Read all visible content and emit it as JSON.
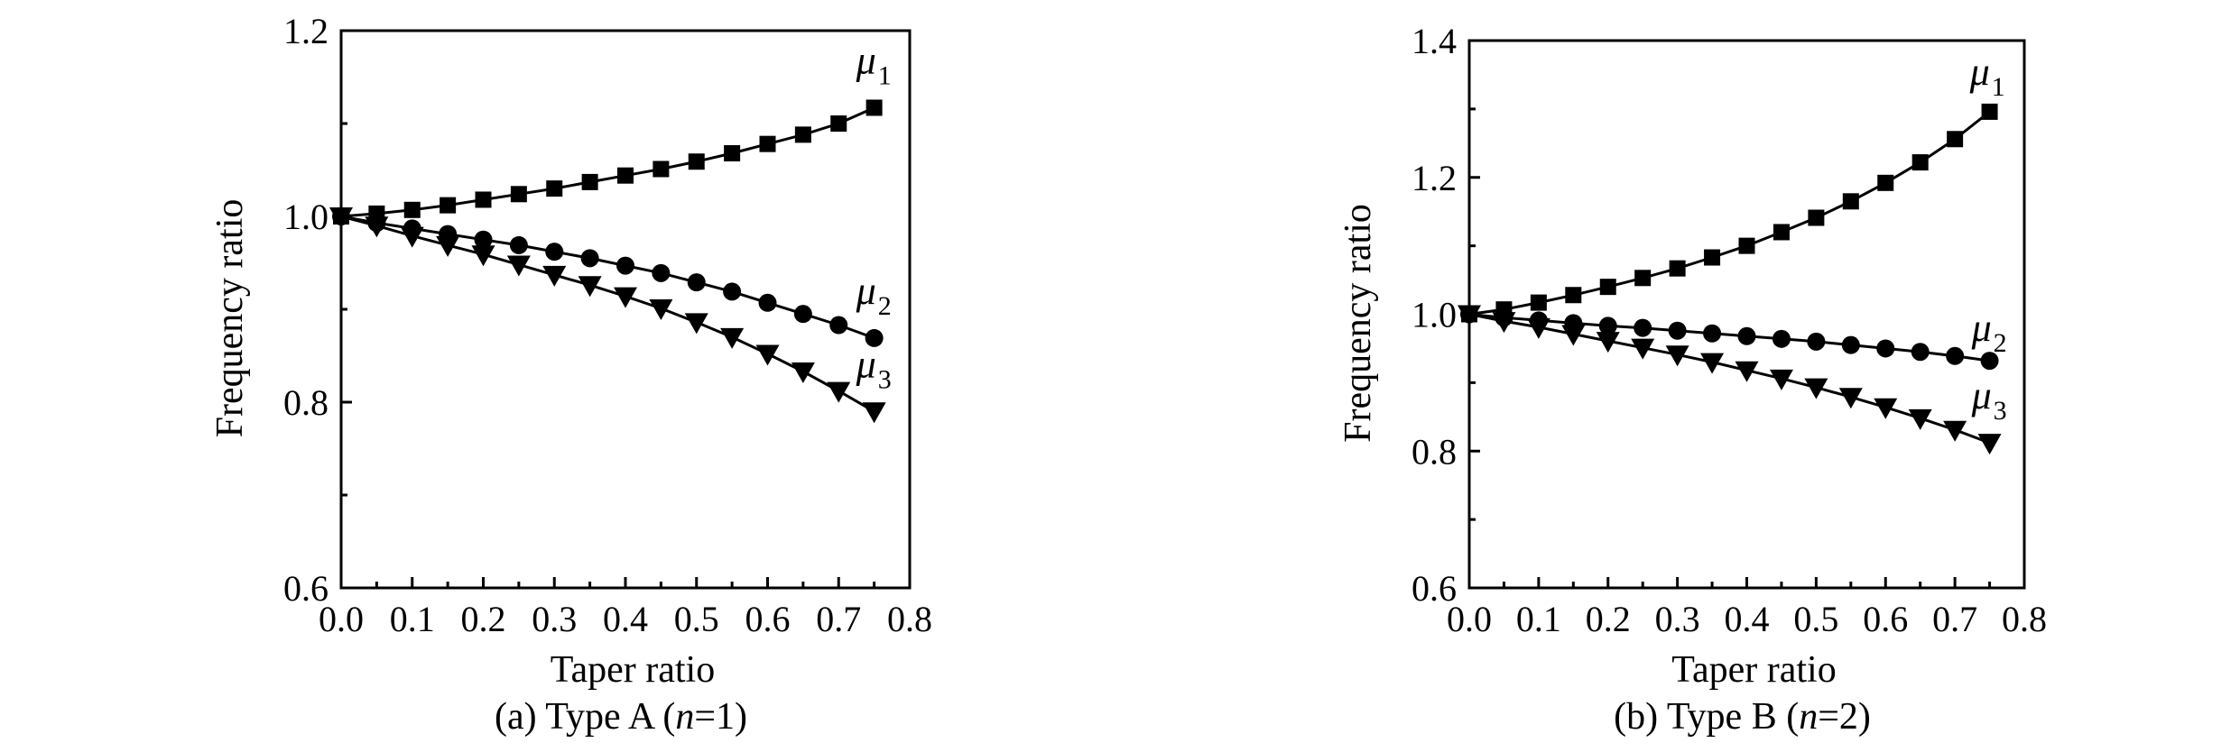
{
  "chart_data": [
    {
      "type": "line",
      "xlabel": "Taper ratio",
      "ylabel": "Frequency ratio",
      "caption_prefix": "(a) Type A (",
      "caption_var": "n",
      "caption_suffix": "=1)",
      "xlim": [
        0.0,
        0.8
      ],
      "ylim": [
        0.6,
        1.2
      ],
      "xticks": [
        "0.0",
        "0.1",
        "0.2",
        "0.3",
        "0.4",
        "0.5",
        "0.6",
        "0.7",
        "0.8"
      ],
      "yticks": [
        "0.6",
        "0.8",
        "1.0",
        "1.2"
      ],
      "grid": false,
      "x": [
        0.0,
        0.05,
        0.1,
        0.15,
        0.2,
        0.25,
        0.3,
        0.35,
        0.4,
        0.45,
        0.5,
        0.55,
        0.6,
        0.65,
        0.7,
        0.75
      ],
      "series": [
        {
          "label_symbol": "μ",
          "label_sub": "1",
          "marker": "square",
          "values": [
            1.0,
            1.003,
            1.007,
            1.012,
            1.018,
            1.024,
            1.03,
            1.037,
            1.044,
            1.051,
            1.059,
            1.068,
            1.078,
            1.088,
            1.1,
            1.117
          ]
        },
        {
          "label_symbol": "μ",
          "label_sub": "2",
          "marker": "circle",
          "values": [
            1.0,
            0.993,
            0.987,
            0.981,
            0.975,
            0.969,
            0.962,
            0.955,
            0.947,
            0.939,
            0.929,
            0.919,
            0.907,
            0.895,
            0.883,
            0.869
          ]
        },
        {
          "label_symbol": "μ",
          "label_sub": "3",
          "marker": "triangle-down",
          "values": [
            1.0,
            0.99,
            0.979,
            0.969,
            0.959,
            0.948,
            0.937,
            0.926,
            0.914,
            0.901,
            0.886,
            0.87,
            0.852,
            0.833,
            0.812,
            0.79
          ]
        }
      ]
    },
    {
      "type": "line",
      "xlabel": "Taper ratio",
      "ylabel": "Frequency ratio",
      "caption_prefix": "(b) Type B (",
      "caption_var": "n",
      "caption_suffix": "=2)",
      "xlim": [
        0.0,
        0.8
      ],
      "ylim": [
        0.6,
        1.4
      ],
      "xticks": [
        "0.0",
        "0.1",
        "0.2",
        "0.3",
        "0.4",
        "0.5",
        "0.6",
        "0.7",
        "0.8"
      ],
      "yticks": [
        "0.6",
        "0.8",
        "1.0",
        "1.2",
        "1.4"
      ],
      "grid": false,
      "x": [
        0.0,
        0.05,
        0.1,
        0.15,
        0.2,
        0.25,
        0.3,
        0.35,
        0.4,
        0.45,
        0.5,
        0.55,
        0.6,
        0.65,
        0.7,
        0.75
      ],
      "series": [
        {
          "label_symbol": "μ",
          "label_sub": "1",
          "marker": "square",
          "values": [
            1.0,
            1.007,
            1.017,
            1.028,
            1.04,
            1.053,
            1.067,
            1.083,
            1.1,
            1.12,
            1.141,
            1.165,
            1.192,
            1.222,
            1.256,
            1.296
          ]
        },
        {
          "label_symbol": "μ",
          "label_sub": "2",
          "marker": "circle",
          "values": [
            1.0,
            0.995,
            0.991,
            0.987,
            0.983,
            0.98,
            0.976,
            0.972,
            0.968,
            0.964,
            0.96,
            0.955,
            0.95,
            0.945,
            0.939,
            0.932
          ]
        },
        {
          "label_symbol": "μ",
          "label_sub": "3",
          "marker": "triangle-down",
          "values": [
            1.0,
            0.99,
            0.981,
            0.971,
            0.961,
            0.951,
            0.941,
            0.93,
            0.918,
            0.906,
            0.893,
            0.879,
            0.864,
            0.848,
            0.831,
            0.812
          ]
        }
      ]
    }
  ]
}
